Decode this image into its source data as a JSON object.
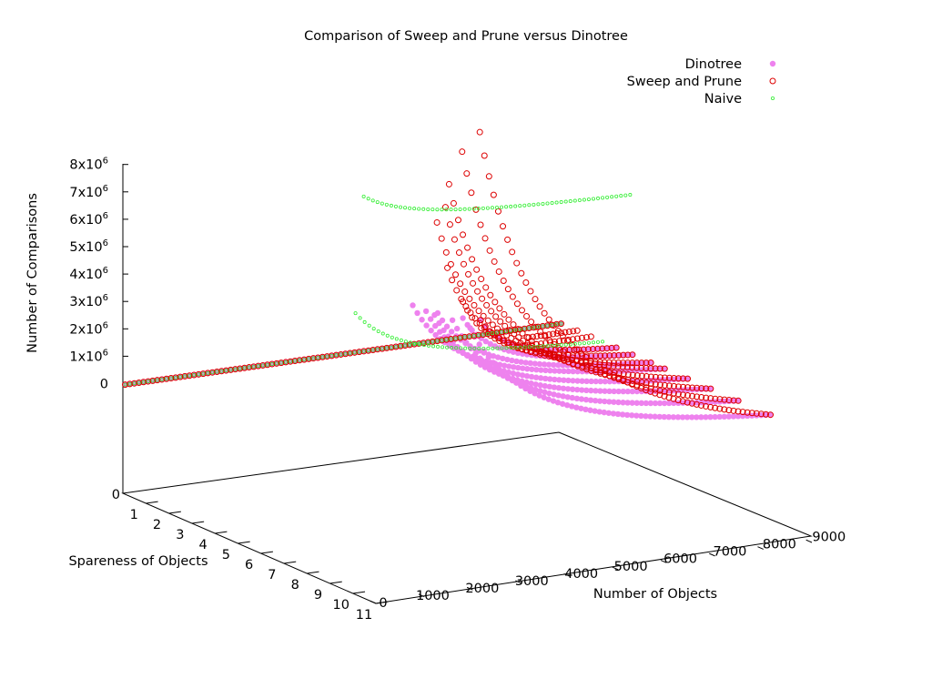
{
  "chart_data": {
    "type": "scatter",
    "title": "Comparison of Sweep and Prune versus Dinotree",
    "xlabel": "Number of Objects",
    "ylabel": "Spareness of Objects",
    "zlabel": "Number of Comparisons",
    "x_ticks": [
      "0",
      "1000",
      "2000",
      "3000",
      "4000",
      "5000",
      "6000",
      "7000",
      "8000",
      "9000"
    ],
    "y_ticks": [
      "0",
      "1",
      "2",
      "3",
      "4",
      "5",
      "6",
      "7",
      "8",
      "9",
      "10",
      "11"
    ],
    "z_ticks": [
      {
        "base": "0",
        "exp": ""
      },
      {
        "base": "1x10",
        "exp": "6"
      },
      {
        "base": "2x10",
        "exp": "6"
      },
      {
        "base": "3x10",
        "exp": "6"
      },
      {
        "base": "4x10",
        "exp": "6"
      },
      {
        "base": "5x10",
        "exp": "6"
      },
      {
        "base": "6x10",
        "exp": "6"
      },
      {
        "base": "7x10",
        "exp": "6"
      },
      {
        "base": "8x10",
        "exp": "6"
      }
    ],
    "z_floor_label": "0",
    "xlim": [
      0,
      9000
    ],
    "ylim": [
      0,
      11
    ],
    "legend_position": "top-right",
    "series": [
      {
        "name": "Dinotree",
        "marker": "filled-circle",
        "color": "#ee82ee",
        "curves": [
          {
            "sparseness": 0.1,
            "start_x": 0,
            "end_x": 9000,
            "z_start": 0,
            "z_end": 0
          },
          {
            "sparseness": 2.5,
            "start_x": 6200,
            "end_x": 9000,
            "z_start": 1700000,
            "z_end": 0
          },
          {
            "sparseness": 3.2,
            "start_x": 5500,
            "end_x": 9000,
            "z_start": 2200000,
            "z_end": 0
          },
          {
            "sparseness": 4.0,
            "start_x": 4600,
            "end_x": 9000,
            "z_start": 2900000,
            "z_end": 0
          },
          {
            "sparseness": 4.6,
            "start_x": 3800,
            "end_x": 9000,
            "z_start": 3600000,
            "z_end": 0
          },
          {
            "sparseness": 5.6,
            "start_x": 3600,
            "end_x": 9000,
            "z_start": 3800000,
            "z_end": 0
          },
          {
            "sparseness": 6.6,
            "start_x": 3300,
            "end_x": 9000,
            "z_start": 4100000,
            "z_end": 0
          },
          {
            "sparseness": 7.8,
            "start_x": 3100,
            "end_x": 9000,
            "z_start": 4400000,
            "z_end": 0
          },
          {
            "sparseness": 9.2,
            "start_x": 2800,
            "end_x": 9000,
            "z_start": 4700000,
            "z_end": 0
          }
        ]
      },
      {
        "name": "Sweep and Prune",
        "marker": "open-circle",
        "color": "#dd0000",
        "curves": [
          {
            "sparseness": 0.1,
            "start_x": 0,
            "end_x": 9000,
            "z_start": 0,
            "z_end": 0
          },
          {
            "sparseness": 0.8,
            "start_x": 8000,
            "end_x": 9000,
            "z_start": 0,
            "z_end": 0
          },
          {
            "sparseness": 1.4,
            "start_x": 7500,
            "end_x": 9000,
            "z_start": 0,
            "z_end": 0
          },
          {
            "sparseness": 2.5,
            "start_x": 6200,
            "end_x": 9000,
            "z_start": 1700000,
            "z_end": 0
          },
          {
            "sparseness": 3.2,
            "start_x": 5500,
            "end_x": 9000,
            "z_start": 2800000,
            "z_end": 0
          },
          {
            "sparseness": 4.0,
            "start_x": 4800,
            "end_x": 9000,
            "z_start": 4500000,
            "z_end": 0
          },
          {
            "sparseness": 4.6,
            "start_x": 4300,
            "end_x": 9000,
            "z_start": 6500000,
            "z_end": 0
          },
          {
            "sparseness": 5.6,
            "start_x": 4000,
            "end_x": 9000,
            "z_start": 7500000,
            "z_end": 0
          },
          {
            "sparseness": 6.6,
            "start_x": 3600,
            "end_x": 9000,
            "z_start": 8800000,
            "z_end": 0
          },
          {
            "sparseness": 7.8,
            "start_x": 3300,
            "end_x": 9000,
            "z_start": 10500000,
            "z_end": 0
          },
          {
            "sparseness": 9.2,
            "start_x": 3000,
            "end_x": 9000,
            "z_start": 11800000,
            "z_end": 0
          }
        ]
      },
      {
        "name": "Naive",
        "marker": "small-open-circle",
        "color": "#33ee33",
        "curves": [
          {
            "sparseness": 0.1,
            "start_x": 0,
            "end_x": 9000,
            "z_start": 0,
            "z_end": 0
          },
          {
            "sparseness": 1.9,
            "start_x": 3900,
            "end_x": 9000,
            "z_start": 2300000,
            "z_end": 0
          },
          {
            "sparseness": 3.1,
            "start_x": 3500,
            "end_x": 9000,
            "z_start": 7100000,
            "z_end": 5800000
          }
        ]
      }
    ]
  }
}
